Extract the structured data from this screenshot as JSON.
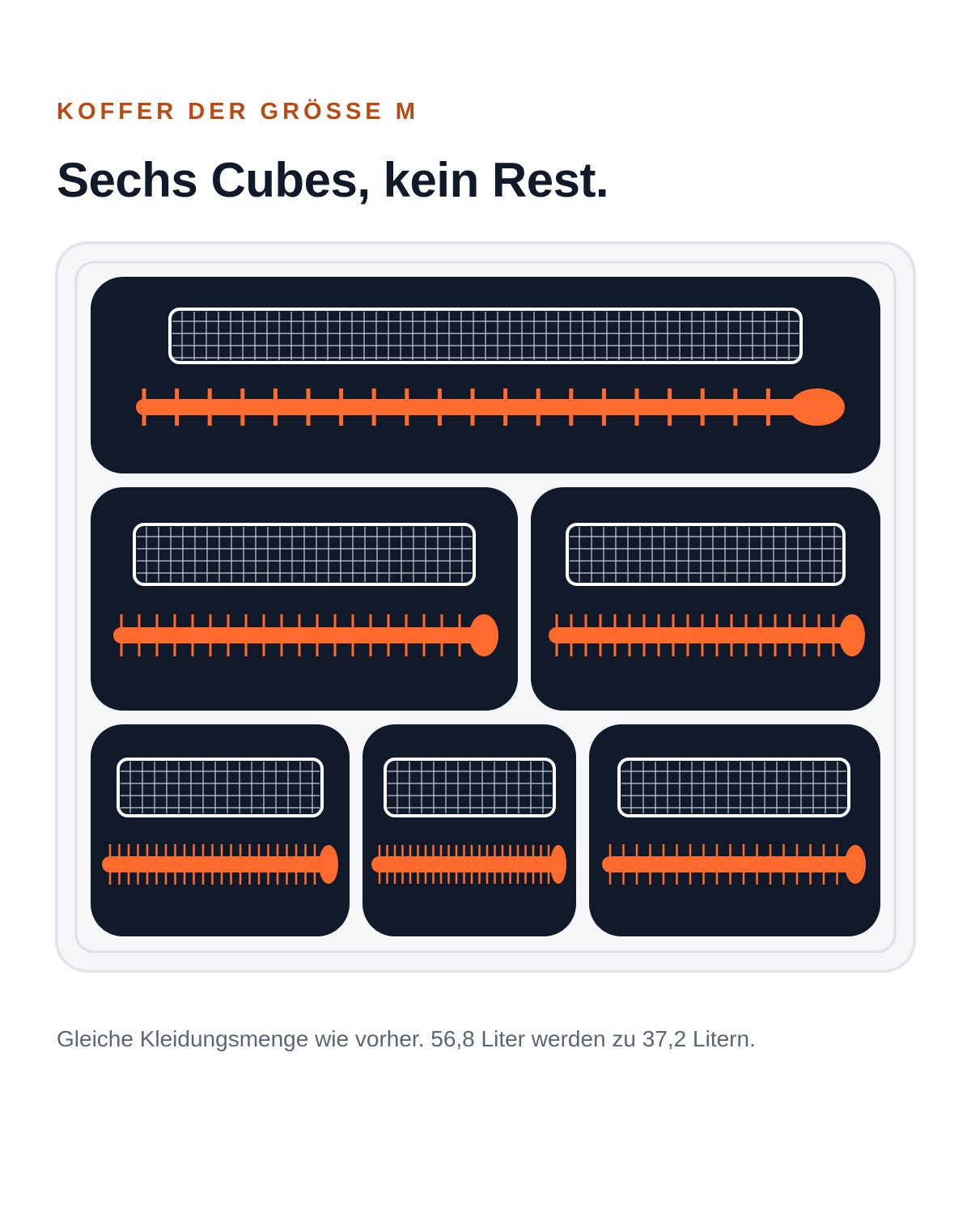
{
  "header": {
    "eyebrow": "KOFFER DER GRÖSSE M",
    "title": "Sechs Cubes, kein Rest."
  },
  "caption": "Gleiche Kleidungsmenge wie vorher. 56,8 Liter werden zu 37,2 Litern."
}
